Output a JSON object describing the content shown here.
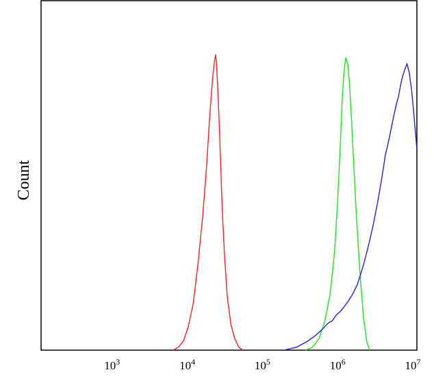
{
  "chart_data": {
    "type": "line",
    "ylabel": "Count",
    "xlabel": "",
    "x_scale": "log",
    "xlim": [
      100,
      10000000
    ],
    "ylim": [
      0,
      1
    ],
    "x_ticks": [
      {
        "value": 1000,
        "base": "10",
        "exp": "3"
      },
      {
        "value": 10000,
        "base": "10",
        "exp": "4"
      },
      {
        "value": 100000,
        "base": "10",
        "exp": "5"
      },
      {
        "value": 1000000,
        "base": "10",
        "exp": "6"
      },
      {
        "value": 10000000,
        "base": "10",
        "exp": "7"
      }
    ],
    "grid": false,
    "series": [
      {
        "color": "#ff2020",
        "x": [
          5700,
          6700,
          7800,
          9100,
          10600,
          12200,
          14100,
          15900,
          17400,
          18600,
          19500,
          20300,
          21000,
          21600,
          22300,
          23200,
          24300,
          25700,
          27600,
          30100,
          33400,
          37600,
          42700,
          48500
        ],
        "y": [
          0.0,
          0.01,
          0.03,
          0.08,
          0.16,
          0.29,
          0.45,
          0.62,
          0.78,
          0.88,
          0.94,
          0.98,
          1.0,
          0.97,
          0.9,
          0.8,
          0.66,
          0.48,
          0.32,
          0.18,
          0.09,
          0.04,
          0.01,
          0.0
        ]
      },
      {
        "color": "#20e020",
        "x": [
          330000,
          410000,
          500000,
          600000,
          700000,
          800000,
          880000,
          950000,
          1010000,
          1070000,
          1130000,
          1200000,
          1270000,
          1350000,
          1450000,
          1580000,
          1750000,
          1950000,
          2150000,
          2350000
        ],
        "y": [
          0.0,
          0.01,
          0.04,
          0.1,
          0.19,
          0.33,
          0.5,
          0.68,
          0.84,
          0.94,
          0.99,
          0.97,
          0.9,
          0.78,
          0.62,
          0.44,
          0.26,
          0.11,
          0.03,
          0.0
        ]
      },
      {
        "color": "#2020e0",
        "x": [
          170000,
          250000,
          350000,
          450000,
          550000,
          650000,
          750000,
          850000,
          950000,
          1100000,
          1250000,
          1400000,
          1600000,
          1800000,
          2000000,
          2300000,
          2600000,
          3000000,
          3400000,
          3800000,
          4300000,
          4800000,
          5300000,
          5700000,
          6100000,
          6500000,
          6900000,
          7400000,
          7900000,
          8500000,
          9100000,
          9700000,
          10000000
        ],
        "y": [
          0.0,
          0.01,
          0.03,
          0.05,
          0.07,
          0.09,
          0.1,
          0.12,
          0.13,
          0.15,
          0.17,
          0.19,
          0.22,
          0.26,
          0.3,
          0.36,
          0.42,
          0.5,
          0.58,
          0.66,
          0.72,
          0.78,
          0.83,
          0.86,
          0.9,
          0.93,
          0.95,
          0.97,
          0.94,
          0.88,
          0.8,
          0.72,
          0.68
        ]
      }
    ]
  }
}
